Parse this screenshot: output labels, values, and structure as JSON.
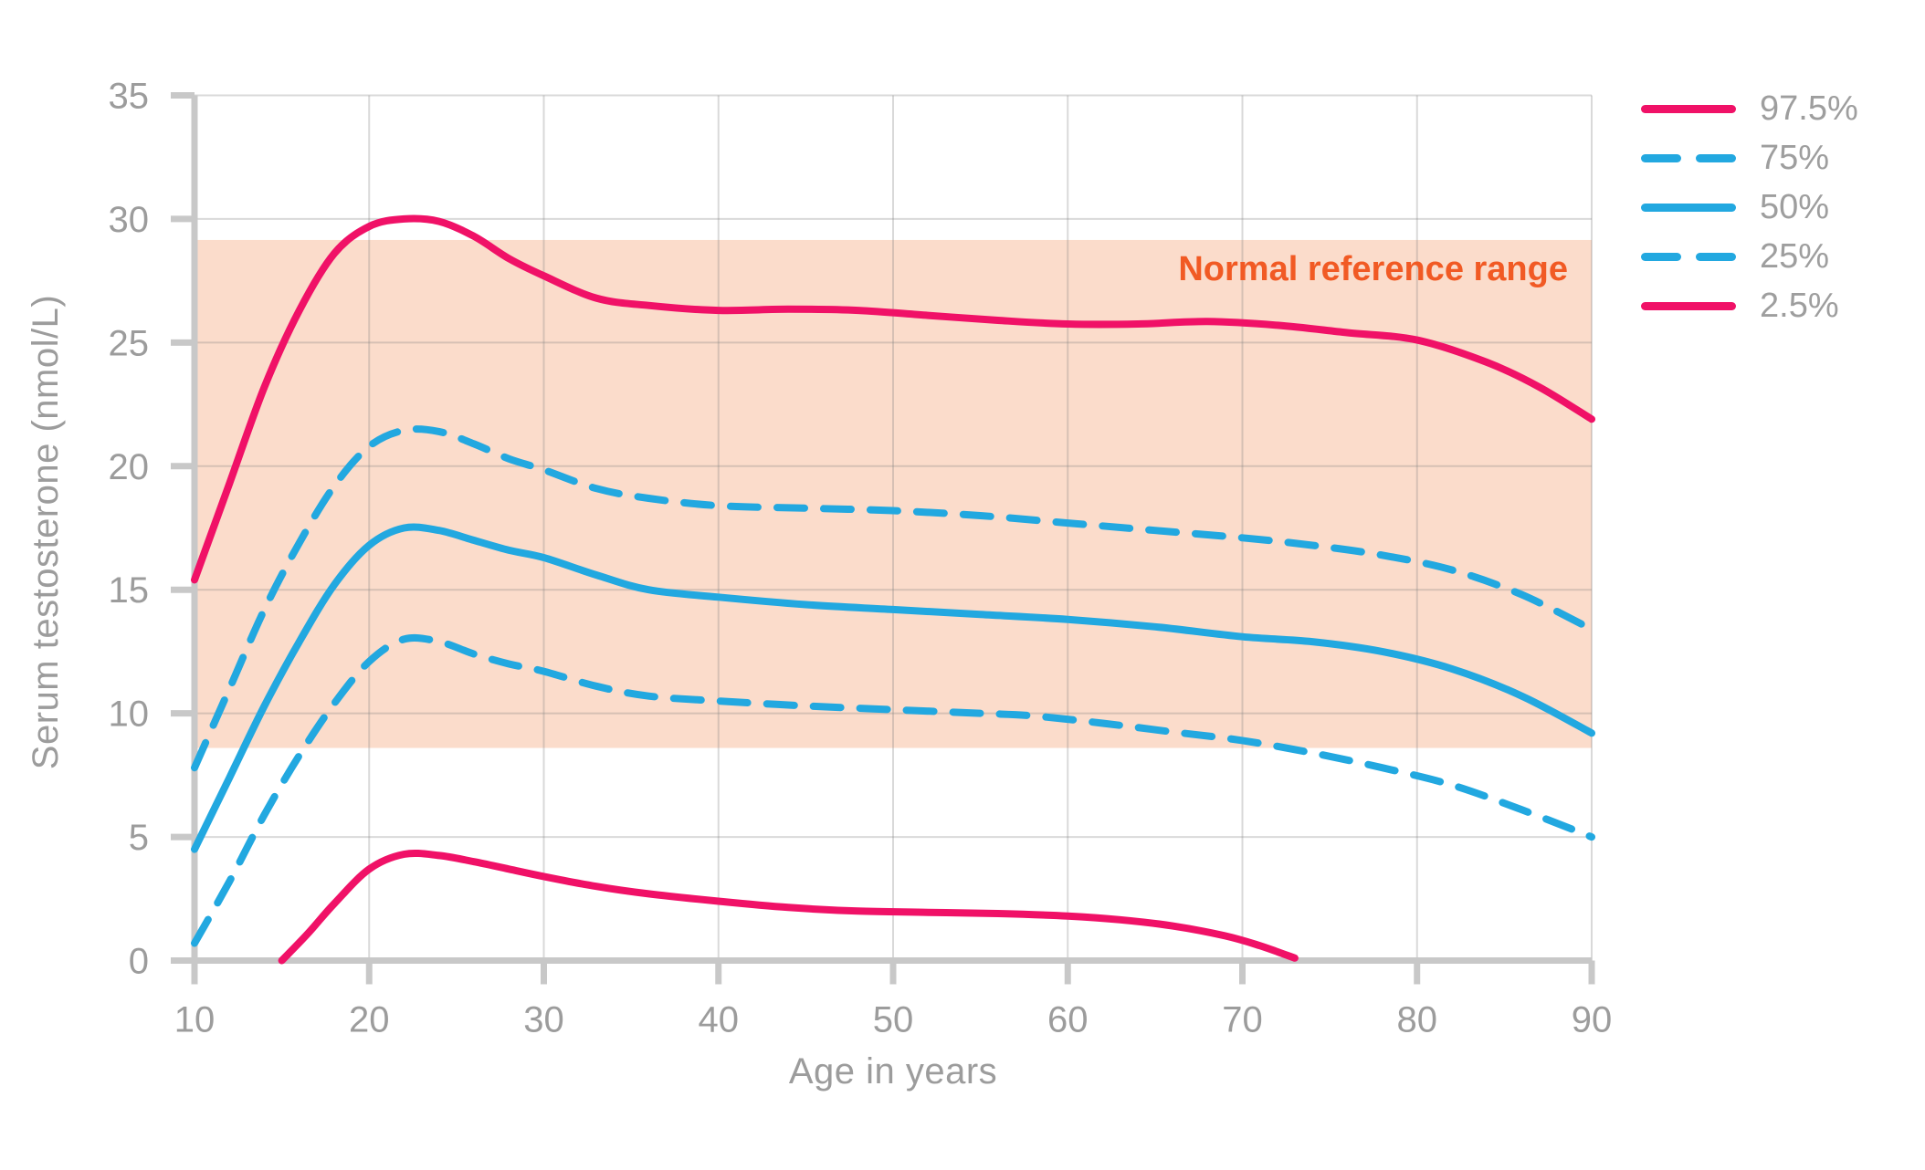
{
  "page": {
    "background": "#ffffff"
  },
  "colors": {
    "pink": "#f01167",
    "blue": "#22a8e0",
    "band": "#fbdccb",
    "annotation_orange": "#f15a24",
    "axis_gray": "#c8c8c8",
    "grid_gray": "#9a9a9a",
    "text_gray": "#9c9c9c",
    "legend_text_gray": "#9e9e9e"
  },
  "annotation": {
    "text": "Normal reference range"
  },
  "chart_data": {
    "type": "line",
    "title": "",
    "xlabel": "Age in years",
    "ylabel": "Serum testosterone (nmol/L)",
    "xlim": [
      10,
      90
    ],
    "ylim": [
      0,
      35
    ],
    "x_ticks": [
      10,
      20,
      30,
      40,
      50,
      60,
      70,
      80,
      90
    ],
    "y_ticks": [
      0,
      5,
      10,
      15,
      20,
      25,
      30,
      35
    ],
    "grid": true,
    "legend_position": "top-right",
    "reference_band": {
      "label": "Normal reference range",
      "y_min": 8.6,
      "y_max": 29.15
    },
    "series": [
      {
        "name": "97.5%",
        "color": "#f01167",
        "style": "solid",
        "points": [
          [
            10,
            15.4
          ],
          [
            12,
            19.3
          ],
          [
            14,
            23.2
          ],
          [
            16,
            26.3
          ],
          [
            18,
            28.6
          ],
          [
            20,
            29.7
          ],
          [
            22,
            30.0
          ],
          [
            24,
            29.9
          ],
          [
            26,
            29.3
          ],
          [
            28,
            28.4
          ],
          [
            30,
            27.7
          ],
          [
            33,
            26.8
          ],
          [
            36,
            26.5
          ],
          [
            40,
            26.3
          ],
          [
            44,
            26.35
          ],
          [
            48,
            26.3
          ],
          [
            52,
            26.1
          ],
          [
            56,
            25.9
          ],
          [
            60,
            25.75
          ],
          [
            64,
            25.75
          ],
          [
            68,
            25.85
          ],
          [
            72,
            25.7
          ],
          [
            76,
            25.4
          ],
          [
            80,
            25.1
          ],
          [
            84,
            24.2
          ],
          [
            87,
            23.2
          ],
          [
            90,
            21.9
          ]
        ]
      },
      {
        "name": "75%",
        "color": "#22a8e0",
        "style": "dashed",
        "points": [
          [
            10,
            7.8
          ],
          [
            12,
            11.0
          ],
          [
            14,
            14.2
          ],
          [
            16,
            16.9
          ],
          [
            18,
            19.2
          ],
          [
            20,
            20.8
          ],
          [
            22,
            21.45
          ],
          [
            24,
            21.4
          ],
          [
            26,
            20.9
          ],
          [
            28,
            20.3
          ],
          [
            30,
            19.85
          ],
          [
            33,
            19.1
          ],
          [
            36,
            18.7
          ],
          [
            40,
            18.4
          ],
          [
            45,
            18.3
          ],
          [
            50,
            18.2
          ],
          [
            55,
            18.0
          ],
          [
            60,
            17.7
          ],
          [
            65,
            17.4
          ],
          [
            70,
            17.1
          ],
          [
            74,
            16.8
          ],
          [
            78,
            16.4
          ],
          [
            82,
            15.8
          ],
          [
            86,
            14.8
          ],
          [
            90,
            13.4
          ]
        ]
      },
      {
        "name": "50%",
        "color": "#22a8e0",
        "style": "solid",
        "points": [
          [
            10,
            4.5
          ],
          [
            12,
            7.4
          ],
          [
            14,
            10.3
          ],
          [
            16,
            12.9
          ],
          [
            18,
            15.2
          ],
          [
            20,
            16.8
          ],
          [
            22,
            17.5
          ],
          [
            24,
            17.4
          ],
          [
            26,
            17.0
          ],
          [
            28,
            16.6
          ],
          [
            30,
            16.3
          ],
          [
            33,
            15.6
          ],
          [
            36,
            15.0
          ],
          [
            40,
            14.7
          ],
          [
            45,
            14.4
          ],
          [
            50,
            14.2
          ],
          [
            55,
            14.0
          ],
          [
            60,
            13.8
          ],
          [
            65,
            13.5
          ],
          [
            70,
            13.1
          ],
          [
            74,
            12.9
          ],
          [
            78,
            12.5
          ],
          [
            82,
            11.8
          ],
          [
            86,
            10.7
          ],
          [
            90,
            9.2
          ]
        ]
      },
      {
        "name": "25%",
        "color": "#22a8e0",
        "style": "dashed",
        "points": [
          [
            10,
            0.7
          ],
          [
            12,
            3.2
          ],
          [
            14,
            5.9
          ],
          [
            16,
            8.3
          ],
          [
            18,
            10.4
          ],
          [
            20,
            12.1
          ],
          [
            22,
            13.0
          ],
          [
            24,
            12.9
          ],
          [
            26,
            12.4
          ],
          [
            28,
            12.0
          ],
          [
            30,
            11.7
          ],
          [
            33,
            11.1
          ],
          [
            36,
            10.7
          ],
          [
            40,
            10.5
          ],
          [
            45,
            10.3
          ],
          [
            50,
            10.15
          ],
          [
            55,
            10.0
          ],
          [
            58,
            9.9
          ],
          [
            62,
            9.6
          ],
          [
            66,
            9.25
          ],
          [
            70,
            8.9
          ],
          [
            74,
            8.4
          ],
          [
            78,
            7.8
          ],
          [
            82,
            7.1
          ],
          [
            86,
            6.1
          ],
          [
            90,
            5.0
          ]
        ]
      },
      {
        "name": "2.5%",
        "color": "#f01167",
        "style": "solid",
        "points": [
          [
            15,
            0.0
          ],
          [
            16.5,
            1.1
          ],
          [
            18,
            2.3
          ],
          [
            20,
            3.7
          ],
          [
            22,
            4.3
          ],
          [
            24,
            4.25
          ],
          [
            26,
            4.0
          ],
          [
            28,
            3.7
          ],
          [
            30,
            3.4
          ],
          [
            33,
            3.0
          ],
          [
            36,
            2.7
          ],
          [
            40,
            2.4
          ],
          [
            44,
            2.15
          ],
          [
            48,
            2.0
          ],
          [
            52,
            1.95
          ],
          [
            56,
            1.9
          ],
          [
            60,
            1.8
          ],
          [
            63,
            1.65
          ],
          [
            66,
            1.4
          ],
          [
            69,
            1.0
          ],
          [
            71,
            0.6
          ],
          [
            73,
            0.1
          ]
        ]
      }
    ]
  }
}
